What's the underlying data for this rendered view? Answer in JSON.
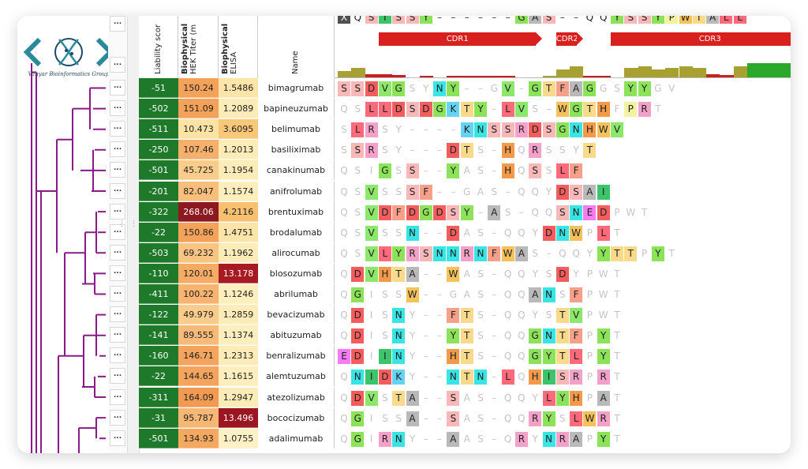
{
  "logo": {
    "text": "Vanyar Bioinformatics Group",
    "icon": "dna-chevrons-logo"
  },
  "headers": {
    "liability": "Liability scor",
    "hek_bold": "Biophysical",
    "hek_sub": "HEK Titer (m",
    "elisa_bold": "Biophysical",
    "elisa_sub": "ELISA",
    "name": "Name"
  },
  "row_button_label": "...",
  "cdr_regions": [
    {
      "label": "CDR1",
      "start": 3,
      "end": 15
    },
    {
      "label": "CDR2",
      "start": 16,
      "end": 18
    },
    {
      "label": "CDR3",
      "start": 20,
      "end": 35
    }
  ],
  "top_sequence": "XQSISSY------GAS--QQYSSYPWTALL",
  "colors": {
    "liability": "#1e7a2a",
    "cdr": "#d8201f"
  },
  "rows": [
    {
      "liability": "-51",
      "hek": "150.24",
      "hek_color": "#f4a25a",
      "elisa": "1.5486",
      "elisa_color": "#fde4a8",
      "name": "bimagrumab",
      "seq": "SSDVGSYNY--GV-GTFAGGSYYGV",
      "hl": "11111001100010111110011"
    },
    {
      "liability": "-502",
      "hek": "151.09",
      "hek_color": "#f4a25a",
      "elisa": "1.2089",
      "elisa_color": "#fdecb8",
      "name": "bapineuzumab",
      "seq": "QSLLDSDGKTY-LVS-WGTHFPRT",
      "hl": "001111111110110011110110"
    },
    {
      "liability": "-511",
      "hek": "10.473",
      "hek_color": "#fbe3a6",
      "elisa": "3.6095",
      "elisa_color": "#f8c878",
      "name": "belimumab",
      "seq": "SLRSY----KNSSRDSGNHWV",
      "hl": "011001111111111111111"
    },
    {
      "liability": "-250",
      "hek": "107.46",
      "hek_color": "#f6b06c",
      "elisa": "1.2013",
      "elisa_color": "#fdecb8",
      "name": "basiliximab",
      "seq": "SSRSY---DTS-HQRSSYT",
      "hl": "0110000011001010001"
    },
    {
      "liability": "-501",
      "hek": "45.725",
      "hek_color": "#f9cc8c",
      "elisa": "1.1954",
      "elisa_color": "#fdecb8",
      "name": "canakinumab",
      "seq": "QSIGSS--YAS-HQSSLF",
      "hl": "000101001000101011"
    },
    {
      "liability": "-201",
      "hek": "82.047",
      "hek_color": "#f7be7c",
      "elisa": "1.1574",
      "elisa_color": "#fdeebe",
      "name": "anifrolumab",
      "seq": "QSVSSSF--GAS-QQYDSAI",
      "hl": "00100110000000001111"
    },
    {
      "liability": "-322",
      "hek": "268.06",
      "hek_color": "#8c1820",
      "elisa": "4.2116",
      "elisa_color": "#f7c070",
      "name": "brentuximab",
      "seq": "QSVDFDGDSY-AS-QQSNEDPWT",
      "hl": "00111111110100001111000"
    },
    {
      "liability": "-22",
      "hek": "150.86",
      "hek_color": "#f4a25a",
      "elisa": "1.4751",
      "elisa_color": "#fde4a8",
      "name": "brodalumab",
      "seq": "QSVSSN--DAS-QQYDNWPLT",
      "hl": "001001001000000111010"
    },
    {
      "liability": "-503",
      "hek": "69.232",
      "hek_color": "#f8c482",
      "elisa": "1.1962",
      "elisa_color": "#fdecb8",
      "name": "alirocumab",
      "seq": "QSVLYRSNNRNFWAS-QQYYTTPYT",
      "hl": "0011111111111100000111010"
    },
    {
      "liability": "-110",
      "hek": "120.01",
      "hek_color": "#f5ab64",
      "elisa": "13.178",
      "elisa_color": "#a81a22",
      "name": "blosozumab",
      "seq": "QDVHTA--WAS-QQYSDYPWT",
      "hl": "011111001000000010000"
    },
    {
      "liability": "-411",
      "hek": "100.22",
      "hek_color": "#f6b470",
      "elisa": "1.1246",
      "elisa_color": "#fdeebe",
      "name": "abrilumab",
      "seq": "QGISSW--GAS-QQANSFPWT",
      "hl": "010001000000001101000"
    },
    {
      "liability": "-122",
      "hek": "49.979",
      "hek_color": "#f9cc8c",
      "elisa": "1.2859",
      "elisa_color": "#fdecb8",
      "name": "bevacizumab",
      "seq": "QDISNY--FTS-QQYSTVPWT",
      "hl": "010010001100000011000"
    },
    {
      "liability": "-141",
      "hek": "89.555",
      "hek_color": "#f7ba78",
      "elisa": "1.1374",
      "elisa_color": "#fdeebe",
      "name": "abituzumab",
      "seq": "QDISNY--YTS-QQGNTFPYT",
      "hl": "010010001100001111010"
    },
    {
      "liability": "-160",
      "hek": "146.71",
      "hek_color": "#f4a45c",
      "elisa": "1.2313",
      "elisa_color": "#fdecb8",
      "name": "benralizumab",
      "seq": "EDIINY--HTS-QQGYTLPYT",
      "hl": "110110001100001111010"
    },
    {
      "liability": "-22",
      "hek": "144.65",
      "hek_color": "#f4a45c",
      "elisa": "1.1615",
      "elisa_color": "#fdeebe",
      "name": "alemtuzumab",
      "seq": "QNIDKY--NTN-LQHISRPRT",
      "hl": "011110001110101111010"
    },
    {
      "liability": "-311",
      "hek": "164.09",
      "hek_color": "#f39a52",
      "elisa": "1.2947",
      "elisa_color": "#fdecb8",
      "name": "atezolizumab",
      "seq": "QDVSTA--SAS-QQYLYHPAT",
      "hl": "011011001000000111010"
    },
    {
      "liability": "-31",
      "hek": "95.787",
      "hek_color": "#f6b674",
      "elisa": "13.496",
      "elisa_color": "#9a1620",
      "name": "bococizumab",
      "seq": "QGISSA--SAS-QQRYSLWRT",
      "hl": "010001001000001101110"
    },
    {
      "liability": "-501",
      "hek": "134.93",
      "hek_color": "#f5a860",
      "elisa": "1.0755",
      "elisa_color": "#fdf0c4",
      "name": "adalimumab",
      "seq": "QGIRNY--AAS-QRYNRAPYT",
      "hl": "010110001000010111010"
    }
  ]
}
